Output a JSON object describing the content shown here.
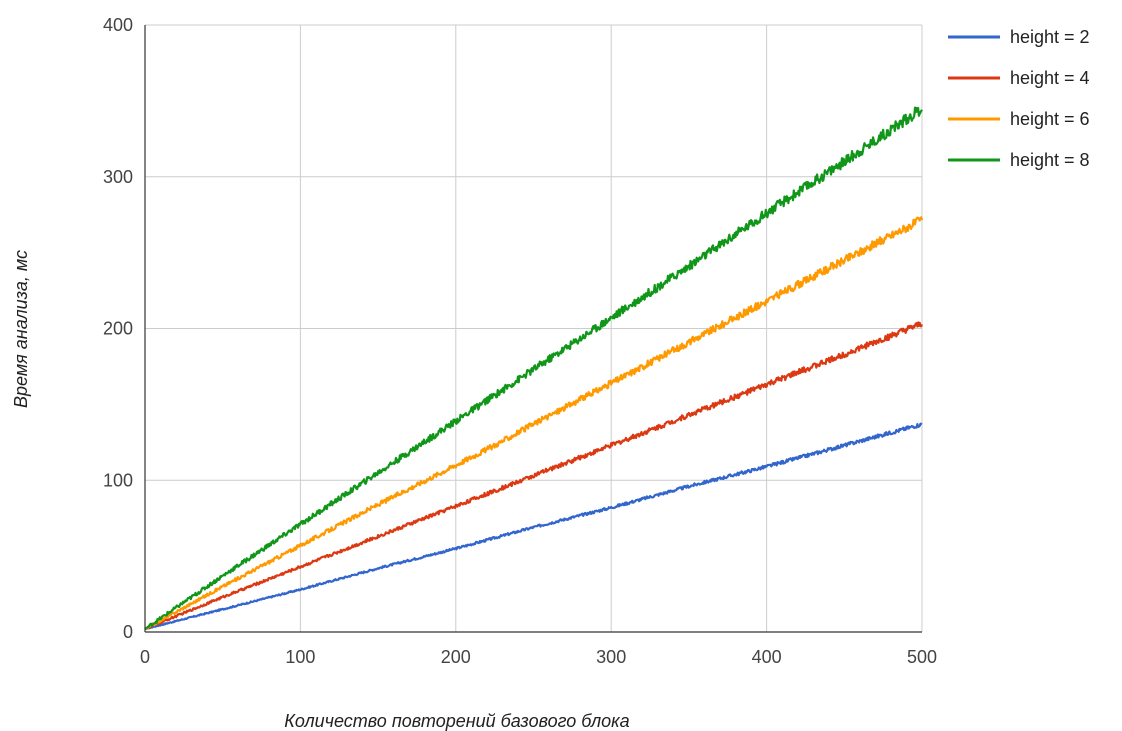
{
  "chart_data": {
    "type": "line",
    "title": "",
    "xlabel": "Количество повторений базового блока",
    "ylabel": "Время анализа, мс",
    "xlim": [
      0,
      500
    ],
    "ylim": [
      0,
      400
    ],
    "x_ticks": [
      "0",
      "100",
      "200",
      "300",
      "400",
      "500"
    ],
    "y_ticks": [
      "0",
      "100",
      "200",
      "300",
      "400"
    ],
    "grid": true,
    "legend_position": "top-right",
    "x": [
      0,
      50,
      100,
      150,
      200,
      225,
      250,
      300,
      350,
      400,
      450,
      500
    ],
    "series": [
      {
        "name": "height = 2",
        "color": "#3366cc",
        "values": [
          2,
          15,
          28,
          42,
          55,
          62,
          69,
          82,
          96,
          109,
          123,
          137
        ]
      },
      {
        "name": "height = 4",
        "color": "#dc3912",
        "values": [
          2,
          23,
          43,
          63,
          83,
          93,
          103,
          123,
          143,
          163,
          183,
          203
        ]
      },
      {
        "name": "height = 6",
        "color": "#ff9900",
        "values": [
          2,
          30,
          57,
          84,
          110,
          123,
          137,
          164,
          191,
          218,
          245,
          272
        ]
      },
      {
        "name": "height = 8",
        "color": "#109618",
        "values": [
          2,
          37,
          71,
          105,
          139,
          156,
          173,
          207,
          241,
          276,
          310,
          345
        ]
      }
    ]
  }
}
